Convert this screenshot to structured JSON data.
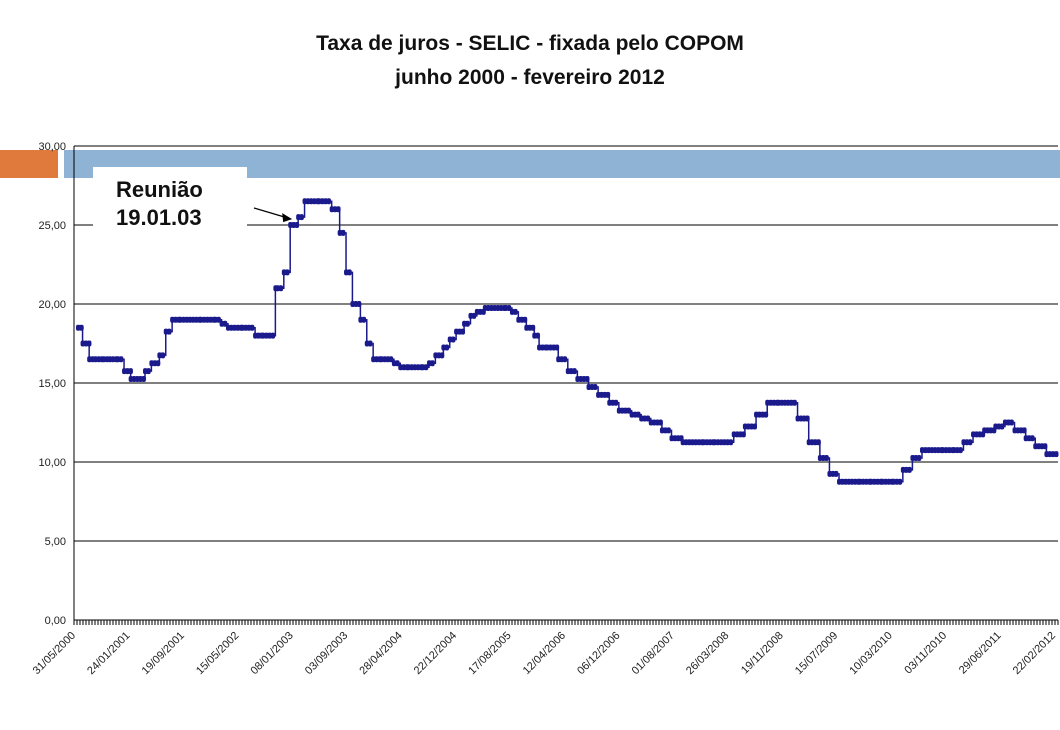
{
  "chart_data": {
    "type": "line",
    "title": "Taxa de juros - SELIC - fixada pelo COPOM",
    "subtitle": "junho 2000 - fevereiro 2012",
    "xlabel": "",
    "ylabel": "",
    "ylim": [
      0,
      30
    ],
    "yticks": [
      "0,00",
      "5,00",
      "10,00",
      "15,00",
      "20,00",
      "25,00",
      "30,00"
    ],
    "x_tick_labels": [
      "31/05/2000",
      "24/01/2001",
      "19/09/2001",
      "15/05/2002",
      "08/01/2003",
      "03/09/2003",
      "28/04/2004",
      "22/12/2004",
      "17/08/2005",
      "12/04/2006",
      "06/12/2006",
      "01/08/2007",
      "26/03/2008",
      "19/11/2008",
      "15/07/2009",
      "10/03/2010",
      "03/11/2010",
      "29/06/2011",
      "22/02/2012"
    ],
    "grid": true,
    "series": [
      {
        "color": "#1a1a8c",
        "x": [
          "2000-05-31",
          "2000-06-20",
          "2000-07-19",
          "2000-08-15",
          "2000-09-20",
          "2000-10-17",
          "2000-11-21",
          "2000-12-19",
          "2001-01-17",
          "2001-02-14",
          "2001-03-21",
          "2001-04-18",
          "2001-05-23",
          "2001-06-20",
          "2001-07-18",
          "2001-08-22",
          "2001-09-19",
          "2001-10-17",
          "2001-11-21",
          "2001-12-19",
          "2002-01-23",
          "2002-02-20",
          "2002-03-20",
          "2002-04-17",
          "2002-05-22",
          "2002-06-19",
          "2002-07-17",
          "2002-08-21",
          "2002-09-18",
          "2002-10-14",
          "2002-10-23",
          "2002-11-20",
          "2002-12-18",
          "2003-01-22",
          "2003-02-19",
          "2003-03-19",
          "2003-04-23",
          "2003-05-21",
          "2003-06-18",
          "2003-07-23",
          "2003-08-20",
          "2003-09-17",
          "2003-10-22",
          "2003-11-19",
          "2003-12-17",
          "2004-01-21",
          "2004-02-18",
          "2004-03-17",
          "2004-04-14",
          "2004-05-19",
          "2004-06-16",
          "2004-07-21",
          "2004-08-18",
          "2004-09-15",
          "2004-10-20",
          "2004-11-17",
          "2004-12-15",
          "2005-01-19",
          "2005-02-16",
          "2005-03-16",
          "2005-04-20",
          "2005-05-18",
          "2005-06-15",
          "2005-07-20",
          "2005-08-17",
          "2005-09-14",
          "2005-10-19",
          "2005-11-23",
          "2005-12-14",
          "2006-01-18",
          "2006-03-08",
          "2006-04-19",
          "2006-05-31",
          "2006-07-19",
          "2006-08-30",
          "2006-10-18",
          "2006-11-29",
          "2007-01-24",
          "2007-03-07",
          "2007-04-18",
          "2007-06-06",
          "2007-07-18",
          "2007-09-05",
          "2007-10-17",
          "2007-12-05",
          "2008-01-23",
          "2008-03-05",
          "2008-04-16",
          "2008-06-04",
          "2008-07-23",
          "2008-09-10",
          "2008-10-29",
          "2008-12-10",
          "2009-01-21",
          "2009-03-11",
          "2009-04-29",
          "2009-06-10",
          "2009-07-22",
          "2009-09-02",
          "2009-10-21",
          "2009-12-09",
          "2010-01-27",
          "2010-03-17",
          "2010-04-28",
          "2010-06-09",
          "2010-07-21",
          "2010-09-01",
          "2010-10-20",
          "2010-12-08",
          "2011-01-19",
          "2011-03-02",
          "2011-04-20",
          "2011-06-08",
          "2011-07-20",
          "2011-08-31",
          "2011-10-19",
          "2011-11-30",
          "2012-01-18",
          "2012-02-29"
        ],
        "values": [
          18.5,
          17.5,
          16.5,
          16.5,
          16.5,
          16.5,
          16.5,
          15.75,
          15.25,
          15.25,
          15.75,
          16.25,
          16.75,
          18.25,
          19.0,
          19.0,
          19.0,
          19.0,
          19.0,
          19.0,
          19.0,
          18.75,
          18.5,
          18.5,
          18.5,
          18.5,
          18.0,
          18.0,
          18.0,
          21.0,
          21.0,
          22.0,
          25.0,
          25.5,
          26.5,
          26.5,
          26.5,
          26.5,
          26.0,
          24.5,
          22.0,
          20.0,
          19.0,
          17.5,
          16.5,
          16.5,
          16.5,
          16.25,
          16.0,
          16.0,
          16.0,
          16.0,
          16.25,
          16.75,
          17.25,
          17.75,
          18.25,
          18.75,
          19.25,
          19.5,
          19.75,
          19.75,
          19.75,
          19.75,
          19.5,
          19.0,
          18.5,
          18.0,
          17.25,
          17.25,
          16.5,
          15.75,
          15.25,
          14.75,
          14.25,
          13.75,
          13.25,
          13.0,
          12.75,
          12.5,
          12.0,
          11.5,
          11.25,
          11.25,
          11.25,
          11.25,
          11.25,
          11.75,
          12.25,
          13.0,
          13.75,
          13.75,
          13.75,
          12.75,
          11.25,
          10.25,
          9.25,
          8.75,
          8.75,
          8.75,
          8.75,
          8.75,
          8.75,
          9.5,
          10.25,
          10.75,
          10.75,
          10.75,
          10.75,
          11.25,
          11.75,
          12.0,
          12.25,
          12.5,
          12.0,
          11.5,
          11.0,
          10.5,
          10.5
        ]
      }
    ],
    "annotation": {
      "line1": "Reunião",
      "line2": "19.01.03"
    }
  }
}
